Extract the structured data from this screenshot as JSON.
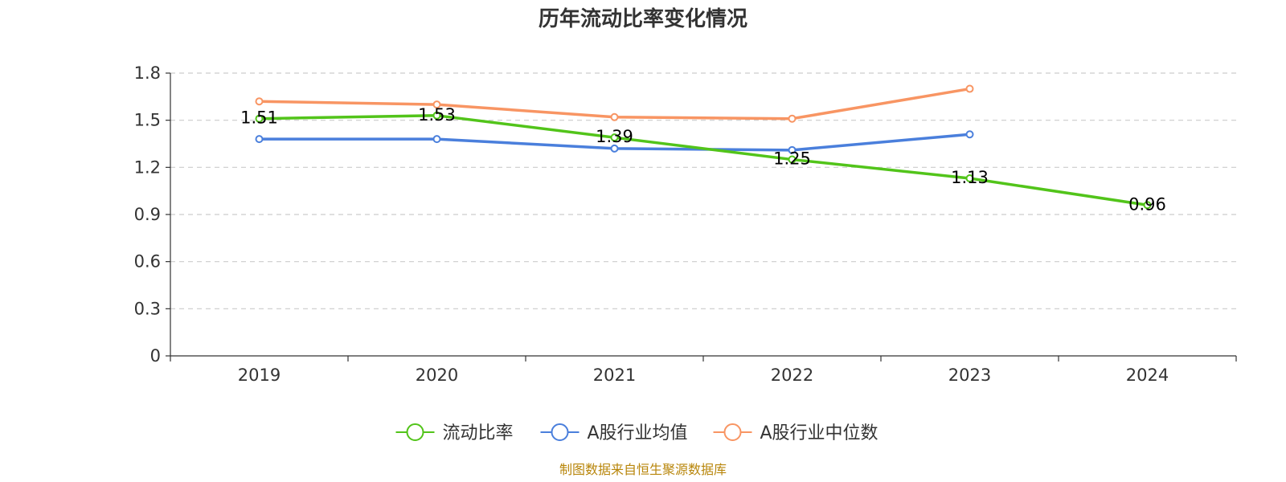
{
  "chart_data": {
    "type": "line",
    "title": "历年流动比率变化情况",
    "x": [
      "2019",
      "2020",
      "2021",
      "2022",
      "2023",
      "2024"
    ],
    "series": [
      {
        "name": "流动比率",
        "color": "#52c41a",
        "values": [
          1.51,
          1.53,
          1.39,
          1.25,
          1.13,
          0.96
        ],
        "show_labels": true
      },
      {
        "name": "A股行业均值",
        "color": "#4a7fdc",
        "values": [
          1.38,
          1.38,
          1.32,
          1.31,
          1.41,
          null
        ],
        "show_labels": false
      },
      {
        "name": "A股行业中位数",
        "color": "#f89563",
        "values": [
          1.62,
          1.6,
          1.52,
          1.51,
          1.7,
          null
        ],
        "show_labels": false
      }
    ],
    "data_labels": [
      "1.51",
      "1.53",
      "1.39",
      "1.25",
      "1.13",
      "0.96"
    ],
    "yticks": [
      "0",
      "0.3",
      "0.6",
      "0.9",
      "1.2",
      "1.5",
      "1.8"
    ],
    "ylim": [
      0,
      1.8
    ],
    "grid": "horizontal-dashed",
    "legend_position": "bottom-center",
    "xlabel": "",
    "ylabel": ""
  },
  "source_note": "制图数据来自恒生聚源数据库"
}
